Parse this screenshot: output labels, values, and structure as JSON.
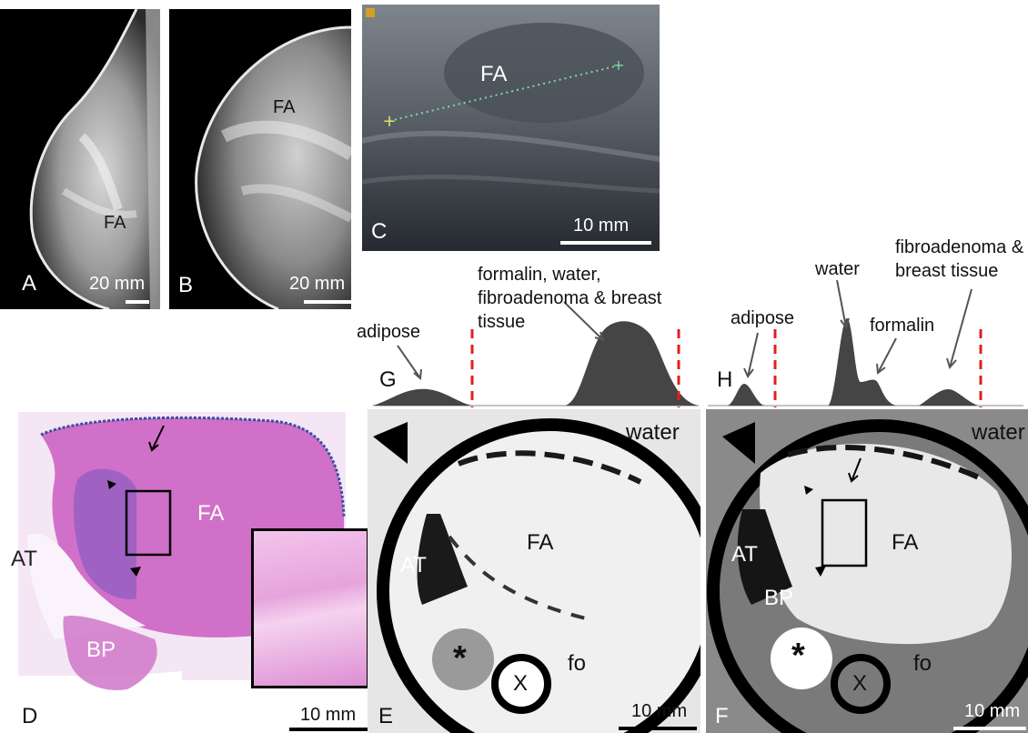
{
  "panels": {
    "A": {
      "letter": "A",
      "scale": "20 mm",
      "tissue": "FA"
    },
    "B": {
      "letter": "B",
      "scale": "20 mm",
      "tissue": "FA"
    },
    "C": {
      "letter": "C",
      "scale": "10 mm",
      "tissue": "FA"
    },
    "D": {
      "letter": "D",
      "scale": "10 mm",
      "labels": {
        "fa": "FA",
        "at": "AT",
        "bp": "BP"
      }
    },
    "E": {
      "letter": "E",
      "scale": "10 mm",
      "labels": {
        "water": "water",
        "fa": "FA",
        "at": "AT",
        "fo": "fo",
        "x": "X",
        "star": "*"
      }
    },
    "F": {
      "letter": "F",
      "scale": "10 mm",
      "labels": {
        "water": "water",
        "fa": "FA",
        "at": "AT",
        "bp": "BP",
        "fo": "fo",
        "x": "X",
        "star": "*"
      }
    },
    "G": {
      "letter": "G",
      "label_adipose": "adipose",
      "label_mix_1": "formalin, water,",
      "label_mix_2": "fibroadenoma & breast",
      "label_mix_3": "tissue"
    },
    "H": {
      "letter": "H",
      "label_adipose": "adipose",
      "label_water": "water",
      "label_formalin": "formalin",
      "label_fb_1": "fibroadenoma &",
      "label_fb_2": "breast tissue"
    }
  },
  "colors": {
    "histogram_fill": "#454545",
    "threshold_line": "#e02020",
    "he_stain": "#d070c8",
    "ultrasound_bg": "#3a4048",
    "measure_line": "#7fd9a0"
  }
}
